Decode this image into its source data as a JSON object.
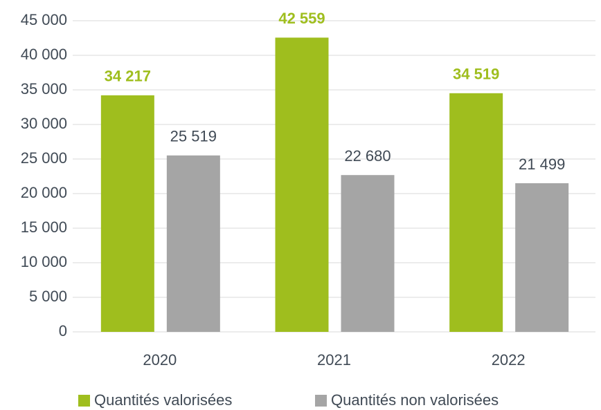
{
  "chart_data": {
    "type": "bar",
    "categories": [
      "2020",
      "2021",
      "2022"
    ],
    "series": [
      {
        "name": "Quantités valorisées",
        "color": "#9fbe1e",
        "values": [
          34217,
          42559,
          34519
        ],
        "value_labels": [
          "34 217",
          "42 559",
          "34 519"
        ]
      },
      {
        "name": "Quantités non valorisées",
        "color": "#a5a5a5",
        "values": [
          25519,
          22680,
          21499
        ],
        "value_labels": [
          "25 519",
          "22 680",
          "21 499"
        ]
      }
    ],
    "ylim": [
      0,
      45000
    ],
    "yticks": [
      0,
      {
        "value": 5000,
        "label": "5 000"
      },
      {
        "value": 10000,
        "label": "10 000"
      },
      {
        "value": 15000,
        "label": "15 000"
      },
      {
        "value": 20000,
        "label": "20 000"
      },
      {
        "value": 25000,
        "label": "25 000"
      },
      {
        "value": 30000,
        "label": "30 000"
      },
      {
        "value": 35000,
        "label": "35 000"
      },
      {
        "value": 40000,
        "label": "40 000"
      },
      {
        "value": 45000,
        "label": "45 000"
      }
    ],
    "grid": true,
    "legend": "bottom"
  }
}
